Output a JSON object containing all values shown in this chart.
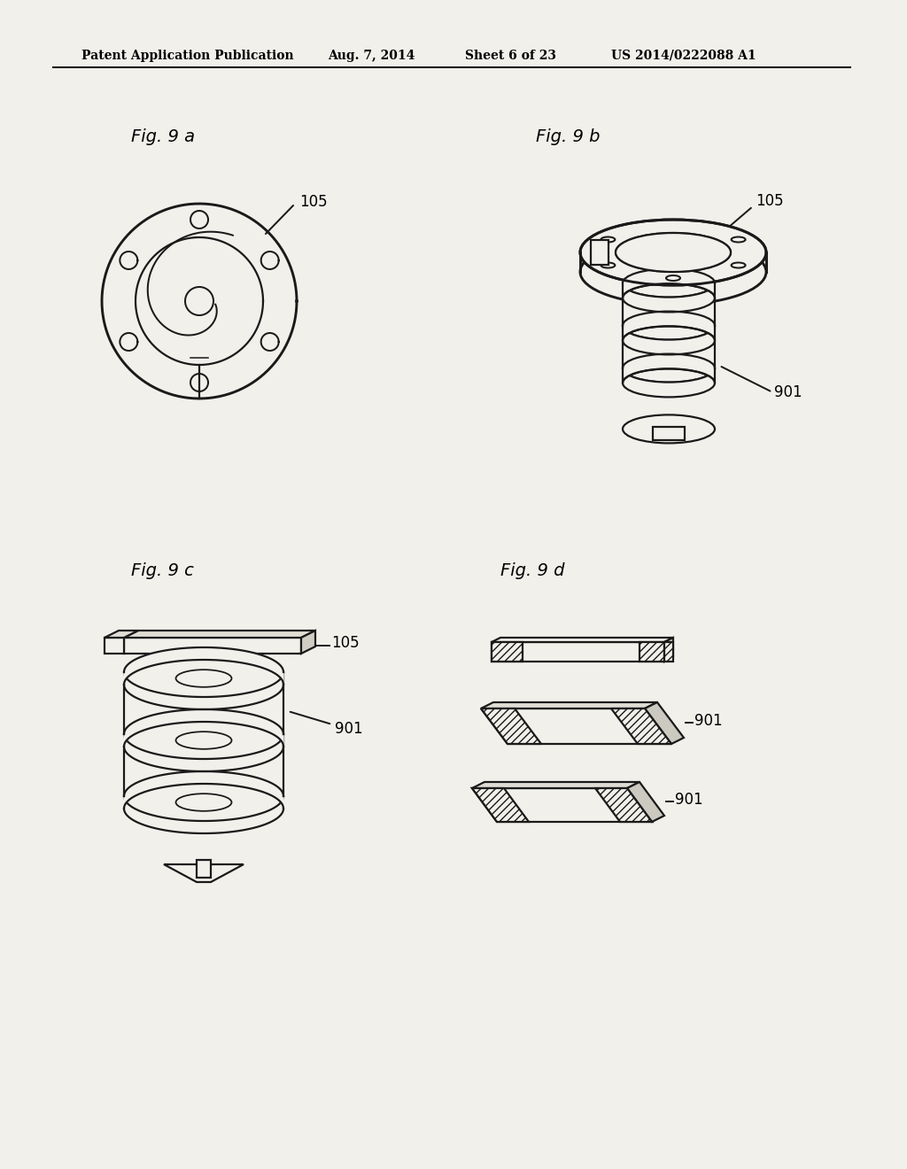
{
  "bg_color": "#f2f0eb",
  "line_color": "#1a1a1a",
  "header_text": "Patent Application Publication",
  "header_date": "Aug. 7, 2014",
  "header_sheet": "Sheet 6 of 23",
  "header_patent": "US 2014/0222088 A1",
  "fig9a_label": "Fig. 9 a",
  "fig9b_label": "Fig. 9 b",
  "fig9c_label": "Fig. 9 c",
  "fig9d_label": "Fig. 9 d",
  "label_105": "105",
  "label_901": "901",
  "lw": 1.6,
  "header_fontsize": 10,
  "fig_label_fontsize": 14,
  "annot_fontsize": 12
}
